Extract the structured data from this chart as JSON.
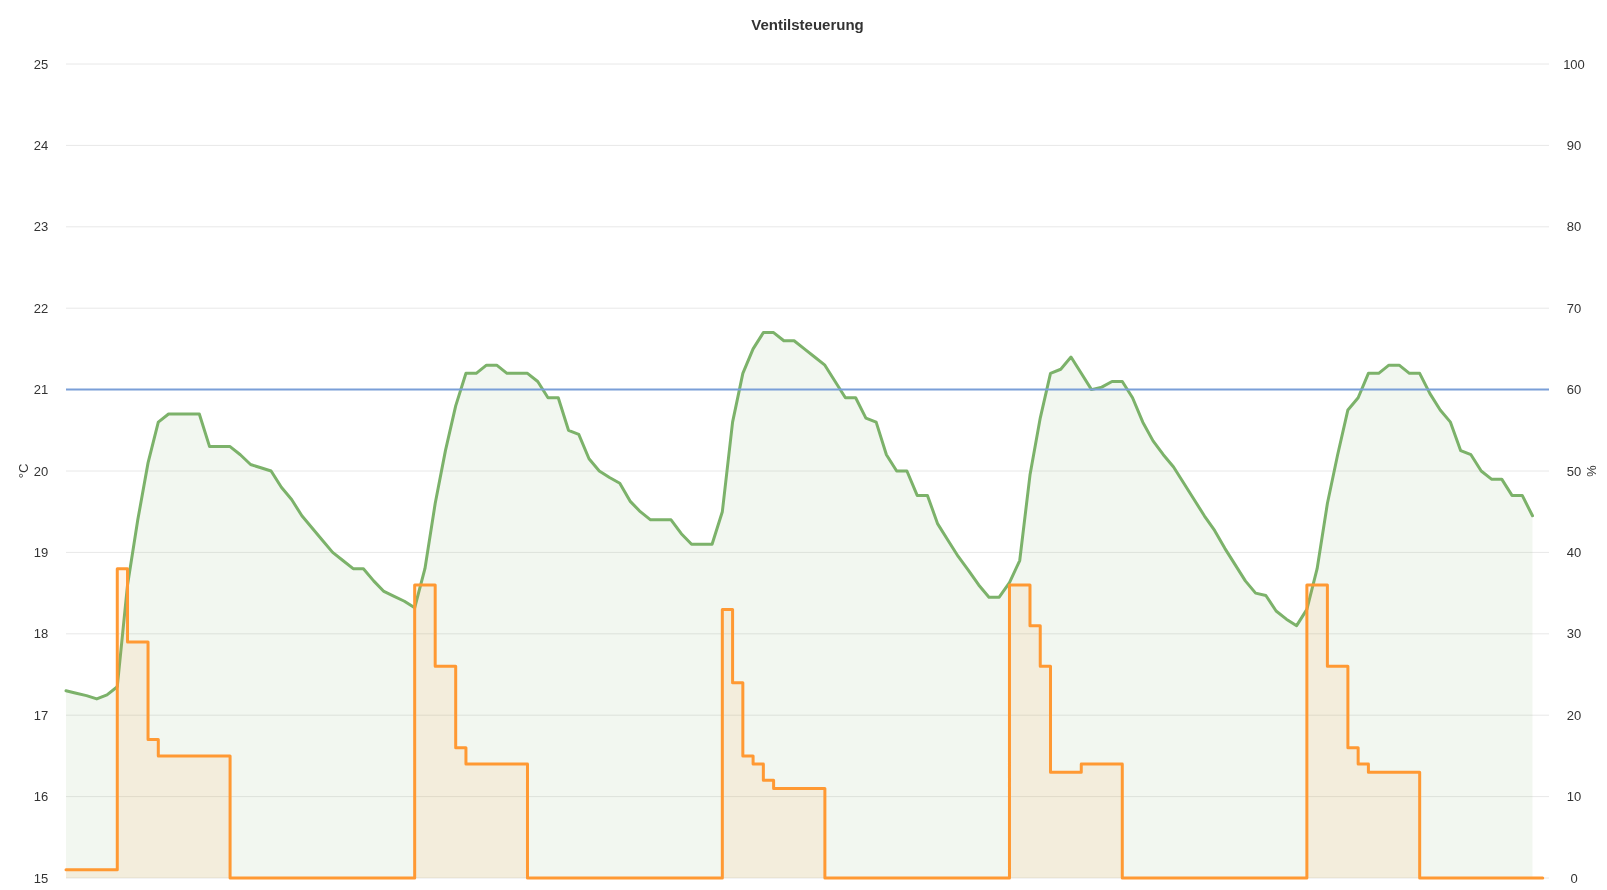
{
  "chart_data": {
    "type": "area",
    "title": "Ventilsteuerung",
    "ylabel": "°C",
    "y2label": "%",
    "categories": [
      null,
      null,
      null,
      null,
      null,
      null,
      null,
      null,
      null,
      null,
      null,
      null,
      null,
      null,
      null,
      null,
      null,
      null,
      null,
      null,
      null,
      null,
      null,
      null,
      null,
      null,
      null,
      null,
      null,
      null,
      null,
      null,
      null,
      null,
      null,
      null,
      null,
      null,
      null,
      null,
      null,
      null,
      null,
      null,
      null,
      null,
      null,
      null,
      null,
      null,
      null,
      null,
      null,
      null,
      null,
      null,
      null,
      null,
      null,
      null,
      null,
      null,
      null,
      null,
      null,
      null,
      null,
      null,
      null,
      null,
      null,
      null,
      null,
      null,
      null,
      null,
      null,
      null,
      null,
      null,
      null,
      null,
      null,
      null,
      null,
      null,
      null,
      null,
      null,
      null,
      null,
      null,
      null,
      null,
      null,
      null,
      null,
      null,
      null,
      null,
      null,
      null,
      null,
      null,
      null,
      null,
      null,
      null,
      null,
      null,
      null,
      null,
      null,
      null,
      null,
      null,
      null,
      null,
      null,
      null,
      null,
      null,
      null,
      null,
      null,
      null,
      null,
      null,
      null,
      null,
      null,
      null,
      null,
      null,
      null,
      null,
      null,
      null,
      null,
      null,
      null,
      null,
      null,
      null,
      null
    ],
    "series": [
      {
        "color": "#7cb26a",
        "values": [
          17.3,
          17.27,
          17.24,
          17.2,
          17.25,
          17.35,
          18.6,
          19.4,
          20.1,
          20.6,
          20.7,
          20.7,
          20.7,
          20.7,
          20.3,
          20.3,
          20.3,
          20.2,
          20.08,
          20.04,
          20.0,
          19.8,
          19.65,
          19.45,
          19.3,
          19.15,
          19.0,
          18.9,
          18.8,
          18.8,
          18.65,
          18.52,
          18.46,
          18.4,
          18.32,
          18.8,
          19.6,
          20.25,
          20.8,
          21.2,
          21.2,
          21.3,
          21.3,
          21.2,
          21.2,
          21.2,
          21.1,
          20.9,
          20.9,
          20.5,
          20.45,
          20.15,
          20.0,
          19.92,
          19.85,
          19.63,
          19.5,
          19.4,
          19.4,
          19.4,
          19.23,
          19.1,
          19.1,
          19.1,
          19.5,
          20.6,
          21.2,
          21.5,
          21.7,
          21.7,
          21.6,
          21.6,
          21.5,
          21.4,
          21.3,
          21.1,
          20.9,
          20.9,
          20.65,
          20.6,
          20.2,
          20.0,
          20.0,
          19.7,
          19.7,
          19.35,
          19.15,
          18.95,
          18.78,
          18.6,
          18.45,
          18.45,
          18.63,
          18.9,
          19.95,
          20.65,
          21.2,
          21.25,
          21.4,
          21.2,
          21.0,
          21.03,
          21.1,
          21.1,
          20.9,
          20.6,
          20.37,
          20.2,
          20.05,
          19.85,
          19.65,
          19.45,
          19.27,
          19.05,
          18.85,
          18.65,
          18.5,
          18.47,
          18.28,
          18.18,
          18.1,
          18.3,
          18.8,
          19.6,
          20.2,
          20.75,
          20.9,
          21.2,
          21.2,
          21.3,
          21.3,
          21.2,
          21.2,
          20.95,
          20.75,
          20.6,
          20.25,
          20.2,
          20.0,
          19.9,
          19.9,
          19.7,
          19.7,
          19.45,
          null
        ]
      },
      {
        "type": "step",
        "axis": "y2",
        "color": "#ff9933",
        "values": [
          1,
          1,
          1,
          1,
          1,
          38,
          29,
          29,
          17,
          15,
          15,
          15,
          15,
          15,
          15,
          15,
          0,
          0,
          0,
          0,
          0,
          0,
          0,
          0,
          0,
          0,
          0,
          0,
          0,
          0,
          0,
          0,
          0,
          0,
          36,
          36,
          26,
          26,
          16,
          14,
          14,
          14,
          14,
          14,
          14,
          0,
          0,
          0,
          0,
          0,
          0,
          0,
          0,
          0,
          0,
          0,
          0,
          0,
          0,
          0,
          0,
          0,
          0,
          0,
          33,
          24,
          15,
          14,
          12,
          11,
          11,
          11,
          11,
          11,
          0,
          0,
          0,
          0,
          0,
          0,
          0,
          0,
          0,
          0,
          0,
          0,
          0,
          0,
          0,
          0,
          0,
          0,
          36,
          36,
          31,
          26,
          13,
          13,
          13,
          14,
          14,
          14,
          14,
          0,
          0,
          0,
          0,
          0,
          0,
          0,
          0,
          0,
          0,
          0,
          0,
          0,
          0,
          0,
          0,
          0,
          0,
          36,
          36,
          26,
          26,
          16,
          14,
          13,
          13,
          13,
          13,
          13,
          0,
          0,
          0,
          0,
          0,
          0,
          0,
          0,
          0,
          0,
          0,
          0,
          0
        ]
      }
    ],
    "ylim": [
      15,
      25
    ],
    "yticks": [
      15,
      16,
      17,
      18,
      19,
      20,
      21,
      22,
      23,
      24,
      25
    ],
    "y2lim": [
      0,
      100
    ],
    "y2ticks": [
      0,
      10,
      20,
      30,
      40,
      50,
      60,
      70,
      80,
      90,
      100
    ],
    "ref_lines": [
      {
        "axis": "y",
        "value": 21,
        "color": "#7a9fd8"
      }
    ],
    "grid": "y"
  }
}
